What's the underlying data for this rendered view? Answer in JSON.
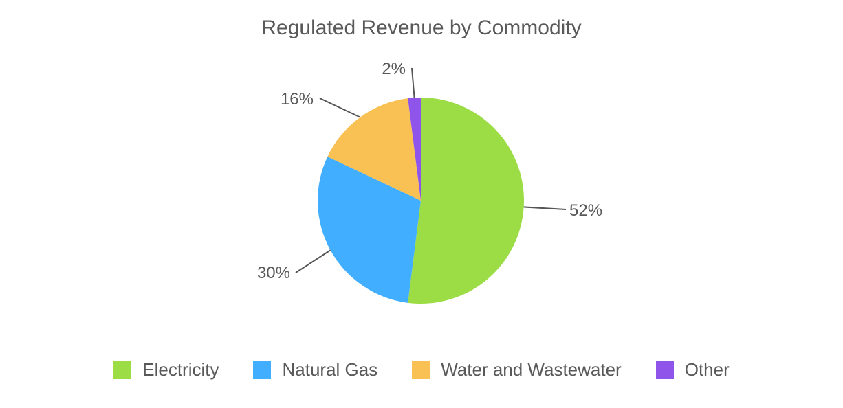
{
  "chart_data": {
    "type": "pie",
    "title": "Regulated Revenue by Commodity",
    "categories": [
      "Electricity",
      "Natural Gas",
      "Water and Wastewater",
      "Other"
    ],
    "values": [
      52,
      30,
      16,
      2
    ],
    "labels": [
      "52%",
      "30%",
      "16%",
      "2%"
    ],
    "colors": [
      "#9cdc45",
      "#42aeff",
      "#f9c053",
      "#8f55ea"
    ],
    "start_angle_deg": 0,
    "direction": "clockwise",
    "legend_position": "bottom"
  },
  "title": "Regulated Revenue by Commodity",
  "legend": [
    {
      "label": "Electricity",
      "color": "#9cdc45"
    },
    {
      "label": "Natural Gas",
      "color": "#42aeff"
    },
    {
      "label": "Water and Wastewater",
      "color": "#f9c053"
    },
    {
      "label": "Other",
      "color": "#8f55ea"
    }
  ]
}
